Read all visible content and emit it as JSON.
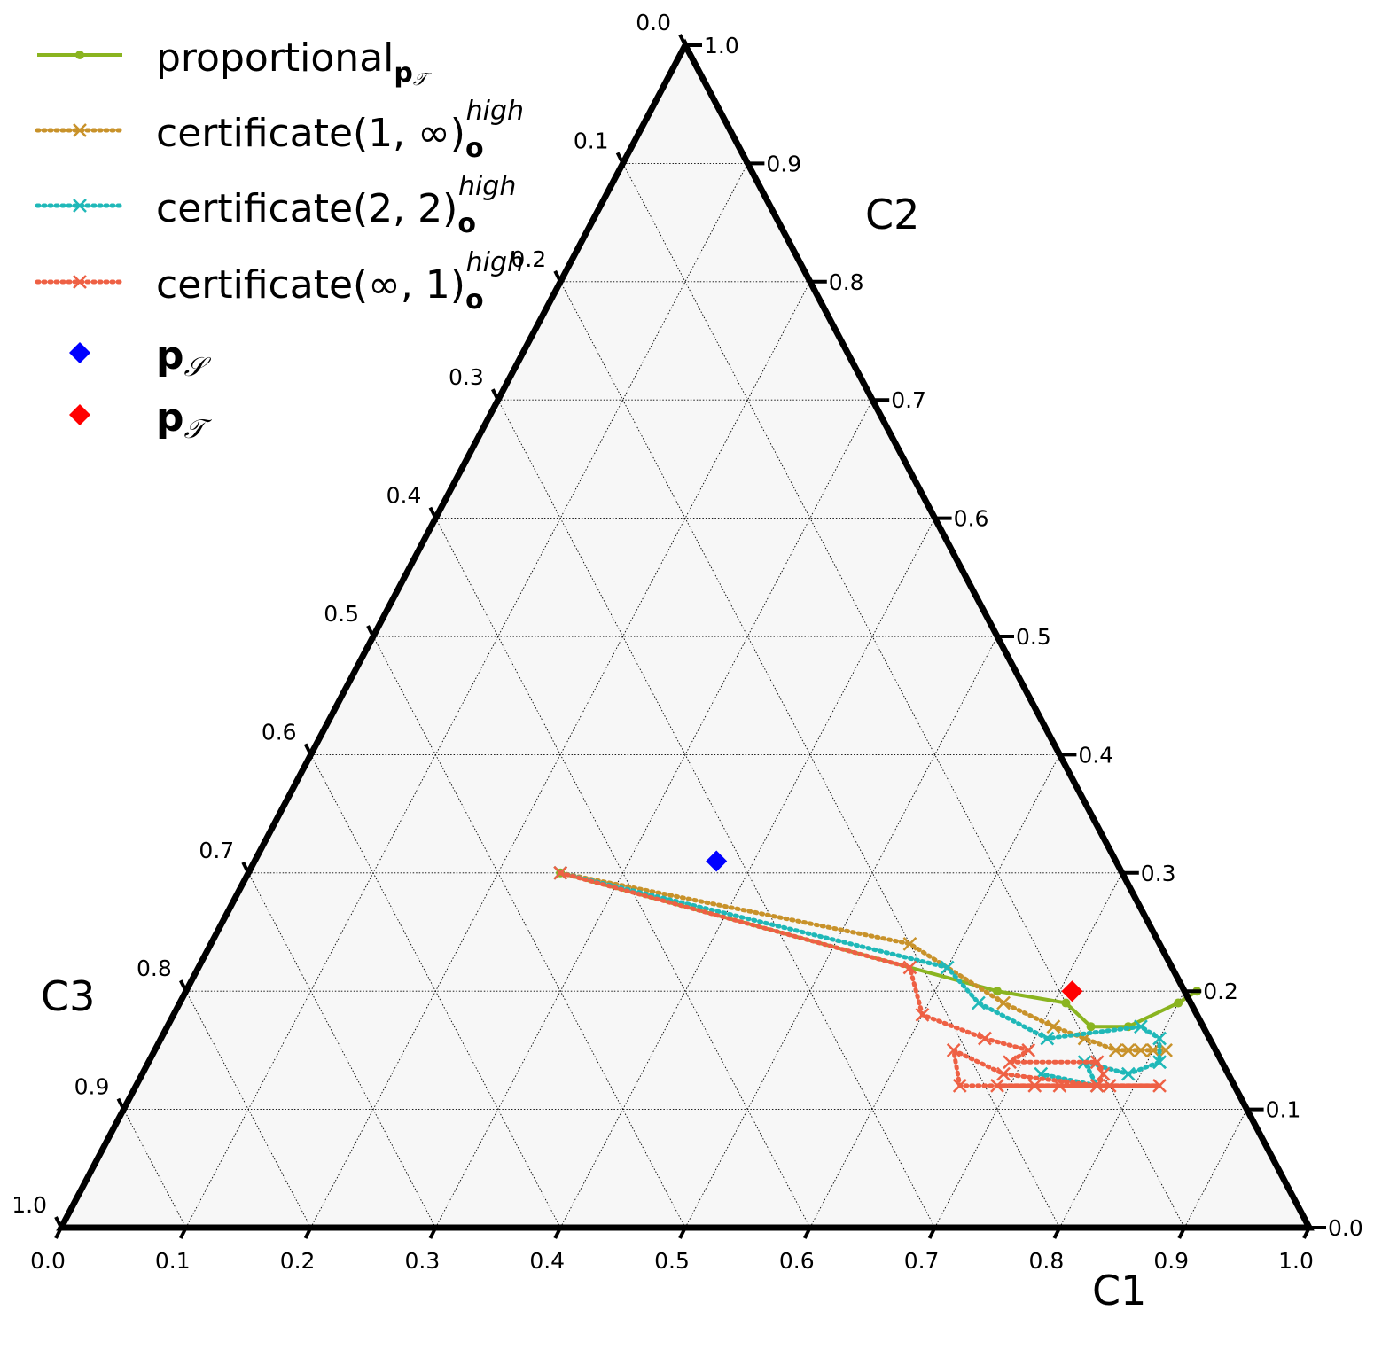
{
  "chart_data": {
    "type": "scatter",
    "subtype": "ternary",
    "axes": {
      "bottom": {
        "label": "C1",
        "ticks": [
          "0.0",
          "0.1",
          "0.2",
          "0.3",
          "0.4",
          "0.5",
          "0.6",
          "0.7",
          "0.8",
          "0.9",
          "1.0"
        ]
      },
      "right": {
        "label": "C2",
        "ticks": [
          "0.0",
          "0.1",
          "0.2",
          "0.3",
          "0.4",
          "0.5",
          "0.6",
          "0.7",
          "0.8",
          "0.9",
          "1.0"
        ]
      },
      "left": {
        "label": "C3",
        "ticks": [
          "0.0",
          "0.1",
          "0.2",
          "0.3",
          "0.4",
          "0.5",
          "0.6",
          "0.7",
          "0.8",
          "0.9",
          "1.0"
        ]
      },
      "range": [
        0,
        1
      ],
      "grid": true,
      "grid_style": "dotted",
      "background": "#f7f7f7"
    },
    "legend": {
      "placement": "top-left",
      "entries": [
        {
          "key": "proportional",
          "text": "proportional",
          "sub": "p",
          "sub2": "𝒯",
          "sup": ""
        },
        {
          "key": "cert1inf",
          "text": "certificate(1, ∞)",
          "sub": "o",
          "sub2": "",
          "sup": "high"
        },
        {
          "key": "cert22",
          "text": "certificate(2, 2)",
          "sub": "o",
          "sub2": "",
          "sup": "high"
        },
        {
          "key": "certinf1",
          "text": "certificate(∞, 1)",
          "sub": "o",
          "sub2": "",
          "sup": "high"
        },
        {
          "key": "pS",
          "text": "p",
          "sub": "",
          "sub2": "𝒮",
          "sup": ""
        },
        {
          "key": "pT",
          "text": "p",
          "sub": "",
          "sub2": "𝒯",
          "sup": ""
        }
      ]
    },
    "series": [
      {
        "name": "proportional",
        "color": "#8ab420",
        "line": "solid",
        "marker": "dot",
        "points": [
          [
            0.25,
            0.3
          ],
          [
            0.65,
            0.2
          ],
          [
            0.71,
            0.19
          ],
          [
            0.74,
            0.17
          ],
          [
            0.77,
            0.17
          ],
          [
            0.8,
            0.19
          ],
          [
            0.81,
            0.2
          ]
        ]
      },
      {
        "name": "certificate(1, ∞)",
        "color": "#c8922a",
        "line": "dotted",
        "marker": "x",
        "points": [
          [
            0.25,
            0.3
          ],
          [
            0.56,
            0.24
          ],
          [
            0.66,
            0.19
          ],
          [
            0.71,
            0.17
          ],
          [
            0.74,
            0.16
          ],
          [
            0.77,
            0.15
          ],
          [
            0.78,
            0.15
          ],
          [
            0.79,
            0.15
          ],
          [
            0.8,
            0.15
          ],
          [
            0.8,
            0.15
          ],
          [
            0.81,
            0.15
          ]
        ]
      },
      {
        "name": "certificate(2, 2)",
        "color": "#1fb8b8",
        "line": "dotted",
        "marker": "x",
        "points": [
          [
            0.25,
            0.3
          ],
          [
            0.6,
            0.22
          ],
          [
            0.64,
            0.19
          ],
          [
            0.71,
            0.16
          ],
          [
            0.78,
            0.17
          ],
          [
            0.8,
            0.16
          ],
          [
            0.81,
            0.14
          ],
          [
            0.81,
            0.14
          ],
          [
            0.79,
            0.13
          ],
          [
            0.75,
            0.14
          ],
          [
            0.77,
            0.12
          ],
          [
            0.72,
            0.13
          ]
        ]
      },
      {
        "name": "certificate(∞, 1)",
        "color": "#ee6044",
        "line": "dotted",
        "marker": "x",
        "points": [
          [
            0.25,
            0.3
          ],
          [
            0.57,
            0.22
          ],
          [
            0.6,
            0.18
          ],
          [
            0.66,
            0.16
          ],
          [
            0.7,
            0.15
          ],
          [
            0.69,
            0.14
          ],
          [
            0.76,
            0.14
          ],
          [
            0.77,
            0.13
          ],
          [
            0.77,
            0.12
          ],
          [
            0.69,
            0.13
          ],
          [
            0.64,
            0.15
          ],
          [
            0.66,
            0.12
          ],
          [
            0.72,
            0.12
          ],
          [
            0.78,
            0.12
          ],
          [
            0.82,
            0.12
          ],
          [
            0.77,
            0.12
          ],
          [
            0.74,
            0.12
          ],
          [
            0.69,
            0.12
          ]
        ]
      },
      {
        "name": "p_S",
        "color": "#0000ff",
        "line": "none",
        "marker": "diamond",
        "points": [
          [
            0.37,
            0.31
          ]
        ]
      },
      {
        "name": "p_T",
        "color": "#ff0000",
        "line": "none",
        "marker": "diamond",
        "points": [
          [
            0.71,
            0.2
          ]
        ]
      }
    ]
  }
}
